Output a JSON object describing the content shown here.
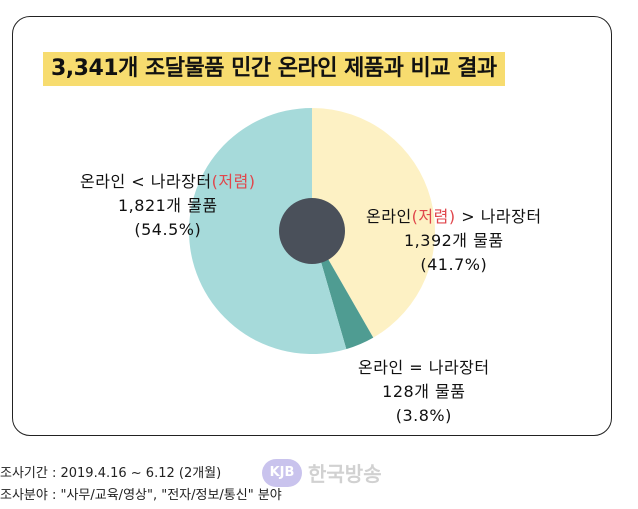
{
  "title": "3,341개 조달물품 민간 온라인 제품과 비교 결과",
  "chart_data": {
    "type": "pie",
    "title": "3,341개 조달물품 민간 온라인 제품과 비교 결과",
    "slices": [
      {
        "name_a": "온라인",
        "name_b": "(저렴)",
        "name_c": " > 나라장터",
        "count_text": "1,392개 물품",
        "pct_text": "(41.7%)",
        "value": 41.7,
        "color": "#fdf1c4"
      },
      {
        "name_a": "온라인 = 나라장터",
        "name_b": "",
        "name_c": "",
        "count_text": "128개  물품",
        "pct_text": "(3.8%)",
        "value": 3.8,
        "color": "#4f9c92"
      },
      {
        "name_a": "온라인 < 나라장터",
        "name_b": "(저렴)",
        "name_c": "",
        "count_text": "1,821개  물품",
        "pct_text": "(54.5%)",
        "value": 54.5,
        "color": "#a6dada"
      }
    ],
    "center_color": "#4a505a"
  },
  "footer": {
    "period": "조사기간 : 2019.4.16 ~ 6.12 (2개월)",
    "fields": "조사분야 : \"사무/교육/영상\", \"전자/정보/통신\" 분야"
  },
  "watermark": {
    "badge": "KJB",
    "text": "한국방송"
  }
}
